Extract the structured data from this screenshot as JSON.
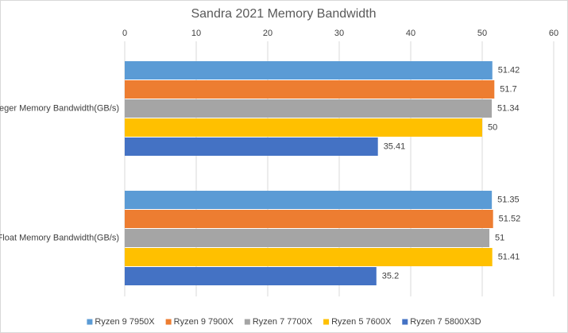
{
  "chart_data": {
    "type": "bar",
    "orientation": "horizontal",
    "title": "Sandra 2021 Memory Bandwidth",
    "categories": [
      "Integer Memory Bandwidth(GB/s)",
      "Float Memory Bandwidth(GB/s)"
    ],
    "series": [
      {
        "name": "Ryzen 9 7950X",
        "color": "#5b9bd5",
        "values": [
          51.42,
          51.35
        ]
      },
      {
        "name": "Ryzen 9 7900X",
        "color": "#ed7d31",
        "values": [
          51.7,
          51.52
        ]
      },
      {
        "name": "Ryzen 7 7700X",
        "color": "#a5a5a5",
        "values": [
          51.34,
          51
        ]
      },
      {
        "name": "Ryzen 5 7600X",
        "color": "#ffc000",
        "values": [
          50,
          51.41
        ]
      },
      {
        "name": "Ryzen 7 5800X3D",
        "color": "#4472c4",
        "values": [
          35.41,
          35.2
        ]
      }
    ],
    "xlim": [
      0,
      60
    ],
    "xticks": [
      0,
      10,
      20,
      30,
      40,
      50,
      60
    ],
    "grid": true,
    "legend": "bottom"
  }
}
